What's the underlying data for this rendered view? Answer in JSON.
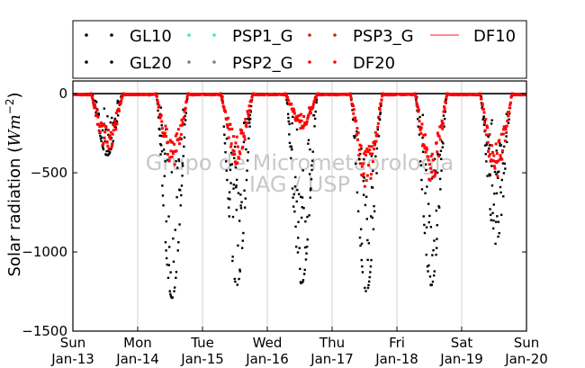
{
  "chart_data": {
    "type": "scatter",
    "title": "",
    "ylabel": "Solar radiation ($Wm^{-2}$)",
    "ylabel_text": "Solar radiation (",
    "ylabel_unit_base": "Wm",
    "ylabel_unit_exp": "−2",
    "ylabel_close": ")",
    "ylim": [
      -1500,
      80
    ],
    "yticks": [
      0,
      -500,
      -1000,
      -1500
    ],
    "ytick_labels": [
      "0",
      "−500",
      "−1000",
      "−1500"
    ],
    "xlim": [
      0,
      7
    ],
    "xticks": [
      0,
      1,
      2,
      3,
      4,
      5,
      6,
      7
    ],
    "xtick_labels": [
      [
        "Sun",
        "Jan-13"
      ],
      [
        "Mon",
        "Jan-14"
      ],
      [
        "Tue",
        "Jan-15"
      ],
      [
        "Wed",
        "Jan-16"
      ],
      [
        "Thu",
        "Jan-17"
      ],
      [
        "Fri",
        "Jan-18"
      ],
      [
        "Sat",
        "Jan-19"
      ],
      [
        "Sun",
        "Jan-20"
      ]
    ],
    "grid": "vertical",
    "zero_line": 0,
    "legend_position": "top",
    "watermark": [
      "Grupo de Micrometeorologia",
      "IAG / USP"
    ],
    "series": [
      {
        "name": "GL10",
        "color": "#000000",
        "marker": "dot"
      },
      {
        "name": "GL20",
        "color": "#000000",
        "marker": "dot"
      },
      {
        "name": "PSP1_G",
        "color": "#40e0d0",
        "marker": "dot"
      },
      {
        "name": "PSP2_G",
        "color": "#808080",
        "marker": "dot"
      },
      {
        "name": "PSP3_G",
        "color": "#cc2200",
        "marker": "dot"
      },
      {
        "name": "DF20",
        "color": "#ff0000",
        "marker": "dot"
      },
      {
        "name": "DF10",
        "color": "#ff6666",
        "marker": "line"
      }
    ],
    "daily_profiles": {
      "days": [
        0,
        1,
        2,
        3,
        4,
        5,
        6
      ],
      "global_peak": [
        -390,
        -1290,
        -1210,
        -1200,
        -1250,
        -1210,
        -950
      ],
      "diffuse_peak": [
        -380,
        -480,
        -450,
        -230,
        -600,
        -580,
        -540
      ]
    }
  }
}
